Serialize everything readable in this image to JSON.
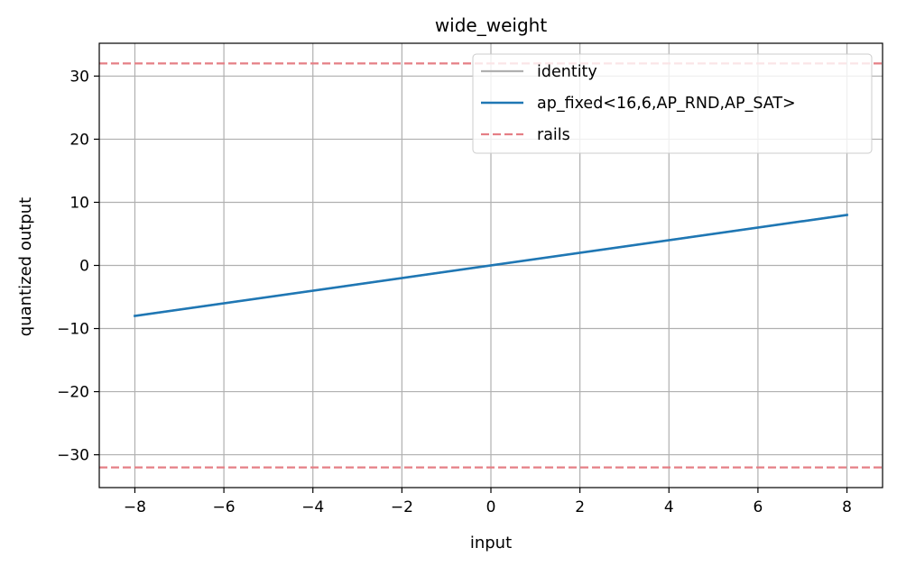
{
  "chart_data": {
    "type": "line",
    "title": "wide_weight",
    "xlabel": "input",
    "ylabel": "quantized output",
    "xlim": [
      -8.8,
      8.8
    ],
    "ylim": [
      -35.2,
      35.2
    ],
    "xticks": [
      -8,
      -6,
      -4,
      -2,
      0,
      2,
      4,
      6,
      8
    ],
    "yticks": [
      -30,
      -20,
      -10,
      0,
      10,
      20,
      30
    ],
    "xtick_labels": [
      "−8",
      "−6",
      "−4",
      "−2",
      "0",
      "2",
      "4",
      "6",
      "8"
    ],
    "ytick_labels": [
      "−30",
      "−20",
      "−10",
      "0",
      "10",
      "20",
      "30"
    ],
    "grid": true,
    "legend_position": "top-right",
    "series": [
      {
        "name": "identity",
        "color": "#b0b0b0",
        "style": "solid",
        "x": [
          -8,
          8
        ],
        "y": [
          -8,
          8
        ]
      },
      {
        "name": "ap_fixed<16,6,AP_RND,AP_SAT>",
        "color": "#1f77b4",
        "style": "solid",
        "x": [
          -8,
          8
        ],
        "y": [
          -8,
          8
        ]
      }
    ],
    "hlines": [
      {
        "name": "rails",
        "color": "#e377c2",
        "display_color": "#e57f85",
        "style": "dashed",
        "values": [
          32,
          -32
        ]
      }
    ]
  }
}
